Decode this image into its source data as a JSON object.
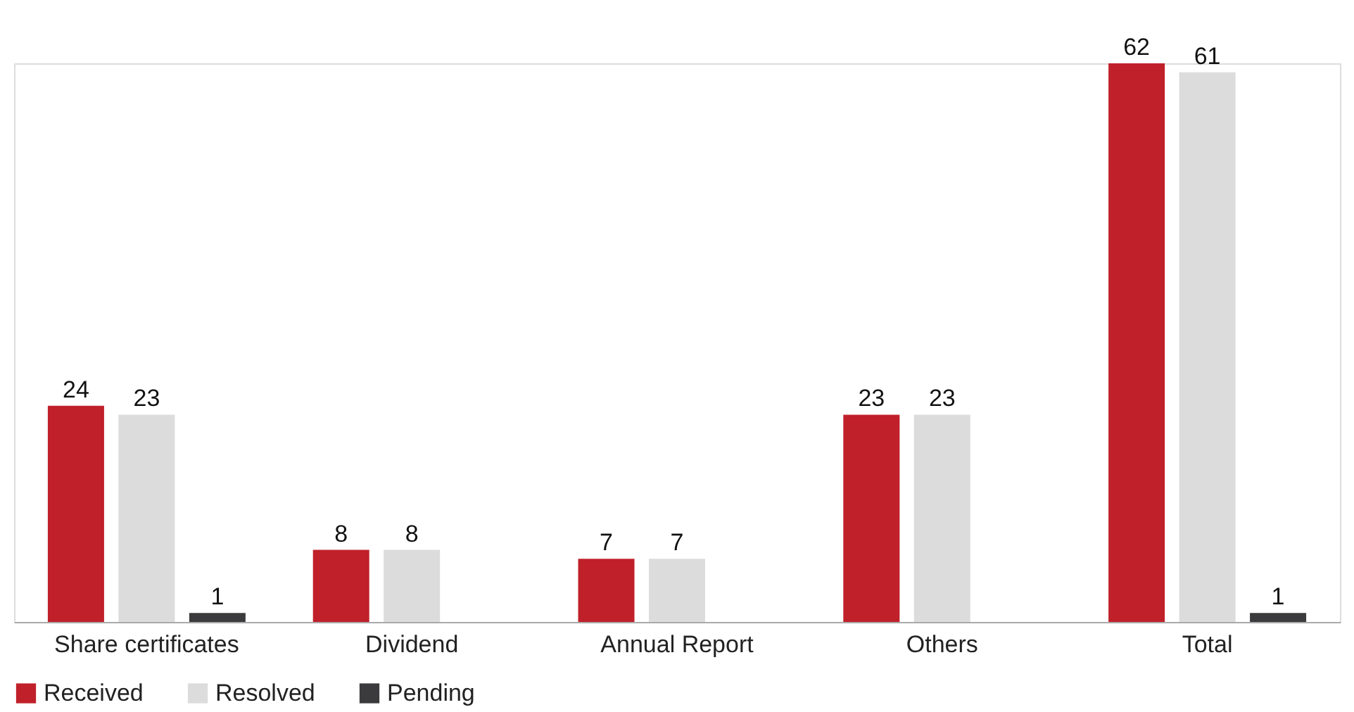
{
  "chart_data": {
    "type": "bar",
    "categories": [
      "Share certificates",
      "Dividend",
      "Annual Report",
      "Others",
      "Total"
    ],
    "series": [
      {
        "name": "Received",
        "color": "#c0202a",
        "values": [
          24,
          8,
          7,
          23,
          62
        ]
      },
      {
        "name": "Resolved",
        "color": "#dcdcdd",
        "values": [
          23,
          8,
          7,
          23,
          61
        ]
      },
      {
        "name": "Pending",
        "color": "#3b3b3d",
        "values": [
          1,
          null,
          null,
          null,
          1
        ]
      }
    ],
    "data_labels": true,
    "legend": "bottom",
    "grid": false
  }
}
